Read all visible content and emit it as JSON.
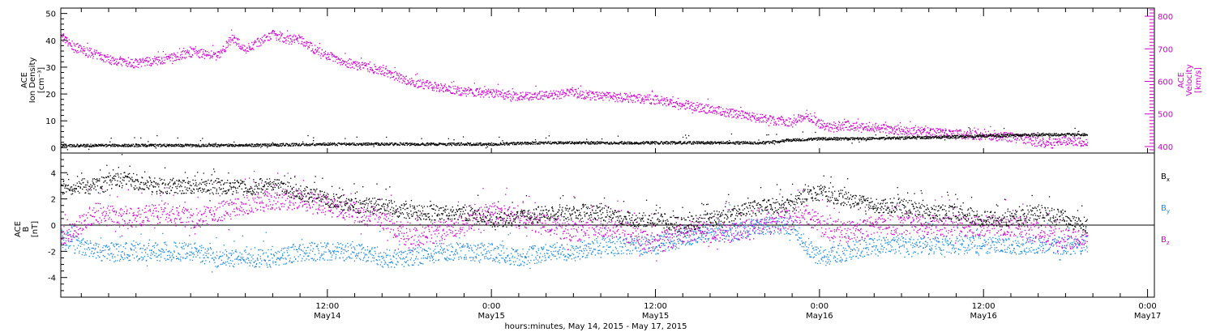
{
  "figure": {
    "xlabel": "hours:minutes, May 14, 2015 - May 17, 2015",
    "x_range_hours": [
      -7.5,
      72.5
    ],
    "x_ticks": [
      {
        "hour": 12,
        "time": "12:00",
        "date": "May14"
      },
      {
        "hour": 24,
        "time": "0:00",
        "date": "May15"
      },
      {
        "hour": 36,
        "time": "12:00",
        "date": "May15"
      },
      {
        "hour": 48,
        "time": "0:00",
        "date": "May16"
      },
      {
        "hour": 60,
        "time": "12:00",
        "date": "May16"
      },
      {
        "hour": 72,
        "time": "0:00",
        "date": "May17"
      }
    ],
    "data_end_hour": 67.6
  },
  "panel_top": {
    "left_label": [
      "ACE",
      "Ion Density",
      "[cm⁻³]"
    ],
    "right_label": [
      "ACE",
      "Velocity",
      "[km/s]"
    ],
    "left_ticks": [
      "0",
      "10",
      "20",
      "30",
      "40",
      "50"
    ],
    "right_ticks": [
      "400",
      "500",
      "600",
      "700",
      "800"
    ],
    "density_color": "#000000",
    "velocity_color": "#cc00cc"
  },
  "panel_bottom": {
    "left_label": [
      "ACE",
      "B",
      "[nT]"
    ],
    "left_ticks": [
      "-4",
      "-2",
      "0",
      "2",
      "4"
    ],
    "legend": [
      {
        "name": "Bx",
        "main": "B",
        "sub": "x",
        "color": "#000000"
      },
      {
        "name": "By",
        "main": "B",
        "sub": "y",
        "color": "#1a88e0"
      },
      {
        "name": "Bz",
        "main": "B",
        "sub": "z",
        "color": "#cc00cc"
      }
    ]
  },
  "chart_data": [
    {
      "type": "scatter",
      "title": "",
      "xlabel": "hours:minutes, May 14, 2015 - May 17, 2015",
      "x_unit": "hours since 2015-05-14 00:00",
      "ylabel": "ACE Ion Density [cm⁻³]",
      "ylim": [
        -2,
        52
      ],
      "y2label": "ACE Velocity [km/s]",
      "y2lim": [
        380,
        825
      ],
      "series": [
        {
          "name": "Ion Density",
          "axis": "left",
          "color": "#000000",
          "x": [
            -7.5,
            -4,
            0,
            4,
            8,
            12,
            16,
            20,
            24,
            28,
            32,
            36,
            40,
            44,
            46,
            48,
            52,
            56,
            60,
            64,
            67.5
          ],
          "y": [
            1,
            1,
            1,
            1,
            1.2,
            1.5,
            1.5,
            1.5,
            1.5,
            2,
            2,
            2,
            2,
            2,
            3,
            3.5,
            3.5,
            4,
            4.5,
            5,
            5
          ]
        },
        {
          "name": "Velocity",
          "axis": "right",
          "color": "#cc00cc",
          "x": [
            -7.5,
            -6.5,
            -4,
            -2,
            0,
            2,
            4,
            5,
            6,
            8,
            9,
            10,
            11,
            12,
            14,
            16,
            18,
            20,
            22,
            24,
            26,
            28,
            30,
            32,
            36,
            40,
            44,
            46,
            47,
            48,
            49,
            50,
            52,
            54,
            56,
            58,
            60,
            62,
            64,
            65,
            66,
            67.5
          ],
          "y": [
            735,
            705,
            670,
            655,
            670,
            690,
            680,
            735,
            700,
            745,
            730,
            730,
            700,
            680,
            650,
            635,
            600,
            585,
            570,
            565,
            555,
            560,
            565,
            555,
            545,
            515,
            485,
            475,
            500,
            470,
            460,
            465,
            460,
            450,
            445,
            440,
            435,
            430,
            415,
            410,
            420,
            415
          ]
        }
      ]
    },
    {
      "type": "scatter",
      "title": "",
      "xlabel": "hours:minutes, May 14, 2015 - May 17, 2015",
      "x_unit": "hours since 2015-05-14 00:00",
      "ylabel": "ACE B [nT]",
      "ylim": [
        -5.5,
        5.5
      ],
      "series": [
        {
          "name": "Bx",
          "color": "#000000",
          "x": [
            -7.5,
            -5,
            -3,
            0,
            2,
            4,
            6,
            8,
            10,
            12,
            14,
            16,
            18,
            20,
            22,
            24,
            26,
            28,
            30,
            32,
            34,
            36,
            38,
            40,
            42,
            44,
            46,
            47,
            48,
            50,
            52,
            54,
            56,
            58,
            60,
            62,
            64,
            66,
            67.5
          ],
          "y": [
            3,
            3,
            3.5,
            3,
            3,
            3,
            3,
            3,
            2.5,
            2,
            1.5,
            1.5,
            1,
            1,
            1,
            0.5,
            0.5,
            1,
            1,
            1,
            0.5,
            0.5,
            0,
            0.5,
            1,
            1.5,
            1.5,
            2.5,
            2.5,
            2,
            1.5,
            1.5,
            1,
            1,
            0.5,
            0.5,
            1,
            0.5,
            0
          ]
        },
        {
          "name": "By",
          "color": "#1a88e0",
          "x": [
            -7.5,
            -5,
            -3,
            0,
            2,
            4,
            6,
            8,
            10,
            12,
            14,
            16,
            18,
            20,
            22,
            24,
            26,
            28,
            30,
            32,
            34,
            36,
            38,
            40,
            42,
            44,
            46,
            47,
            48,
            50,
            52,
            54,
            56,
            58,
            60,
            62,
            64,
            66,
            67.5
          ],
          "y": [
            -1,
            -2,
            -2,
            -2,
            -2,
            -2.5,
            -2.5,
            -2.5,
            -2,
            -2,
            -2,
            -2.5,
            -2.5,
            -2,
            -2,
            -2,
            -2.5,
            -2,
            -2,
            -1.5,
            -1.5,
            -1.5,
            -1,
            -0.5,
            -0.5,
            0,
            0,
            -1.5,
            -2.5,
            -2,
            -1.5,
            -1.5,
            -1.5,
            -1.5,
            -1.5,
            -1.5,
            -1.5,
            -1.5,
            -1.5
          ]
        },
        {
          "name": "Bz",
          "color": "#cc00cc",
          "x": [
            -7.5,
            -5,
            -3,
            0,
            2,
            4,
            6,
            8,
            10,
            12,
            14,
            16,
            18,
            20,
            22,
            24,
            26,
            28,
            30,
            32,
            34,
            36,
            38,
            40,
            42,
            44,
            46,
            47,
            48,
            50,
            52,
            54,
            56,
            58,
            60,
            62,
            64,
            66,
            67.5
          ],
          "y": [
            -1,
            1,
            0.5,
            1,
            0.5,
            1,
            1.5,
            2,
            2,
            1.5,
            1,
            0.5,
            -1,
            -0.5,
            0,
            1,
            0.5,
            0,
            -0.5,
            0,
            -0.5,
            -1.5,
            -0.5,
            -0.5,
            -0.5,
            0,
            0.5,
            1,
            0,
            -0.5,
            0,
            0,
            0,
            0,
            0,
            0,
            -0.5,
            -1,
            -1
          ]
        }
      ]
    }
  ]
}
